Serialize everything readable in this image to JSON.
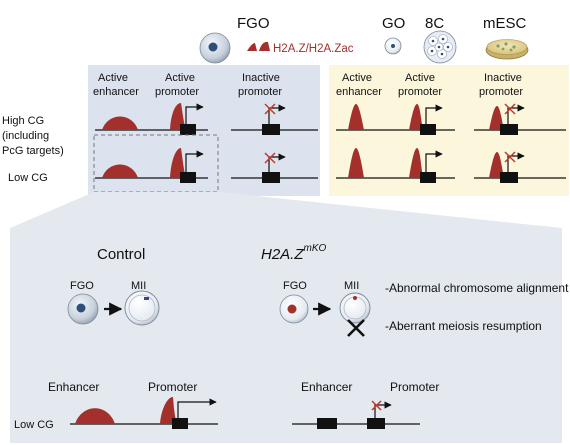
{
  "header": {
    "fgo": "FGO",
    "go": "GO",
    "eight_c": "8C",
    "mesc": "mESC",
    "legend_label": "H2A.Z/H2A.Zac"
  },
  "row_labels": {
    "high_cg_1": "High CG",
    "high_cg_2": "(including",
    "high_cg_3": "PcG targets)",
    "low_cg": "Low CG"
  },
  "left_panel": {
    "active_enhancer_1": "Active",
    "active_enhancer_2": "enhancer",
    "active_promoter_1": "Active",
    "active_promoter_2": "promoter",
    "inactive_promoter_1": "Inactive",
    "inactive_promoter_2": "promoter"
  },
  "right_panel": {
    "active_enhancer_1": "Active",
    "active_enhancer_2": "enhancer",
    "active_promoter_1": "Active",
    "active_promoter_2": "promoter",
    "inactive_promoter_1": "Inactive",
    "inactive_promoter_2": "promoter"
  },
  "bottom": {
    "control": "Control",
    "mutant_base": "H2A.Z",
    "mutant_sup": "mKO",
    "fgo_left": "FGO",
    "mii_left": "MII",
    "fgo_right": "FGO",
    "mii_right": "MII",
    "phenotype_1": "-Abnormal chromosome alignment",
    "phenotype_2": "-Aberrant meiosis resumption",
    "enhancer_left": "Enhancer",
    "promoter_left": "Promoter",
    "enhancer_right": "Enhancer",
    "promoter_right": "Promoter",
    "low_cg": "Low CG"
  },
  "colors": {
    "peak": "#a3302a",
    "left_panel_bg": "#dde3ee",
    "right_panel_bg": "#fcf7dc",
    "bottom_bg": "#e4e8ef",
    "cross": "#c0392b"
  }
}
